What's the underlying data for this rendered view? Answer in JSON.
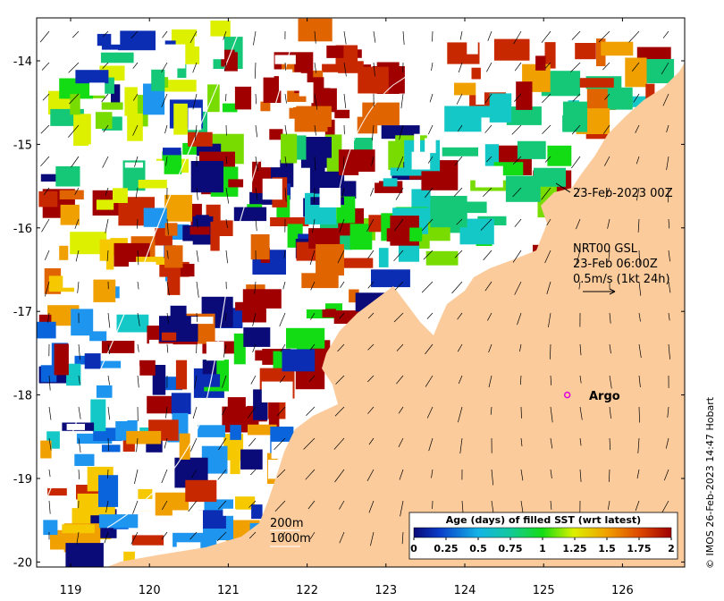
{
  "colors": {
    "land": "#fbcb9c",
    "frame": "#000000",
    "no_data": "#ffffff",
    "argo_marker": "#e000e0",
    "palette": [
      "#0a0a78",
      "#0a2db4",
      "#0a64dc",
      "#1e96f0",
      "#14c8c8",
      "#14c878",
      "#14dc14",
      "#78dc00",
      "#dcf000",
      "#f5c800",
      "#f0a000",
      "#e06400",
      "#c82800",
      "#a00000"
    ]
  },
  "x_axis": {
    "ticks": [
      "119",
      "120",
      "121",
      "122",
      "123",
      "124",
      "125",
      "126"
    ]
  },
  "y_axis": {
    "ticks": [
      "-14",
      "-15",
      "-16",
      "-17",
      "-18",
      "-19",
      "-20"
    ]
  },
  "annotations": {
    "analysis_time": "23-Feb-2023 00Z",
    "current_source": "NRT00 GSL",
    "current_time": "23-Feb 06:00Z",
    "current_scale": "0.5m/s (1kt 24h)"
  },
  "isobaths": {
    "first": "200m",
    "second": "1000m"
  },
  "argo": {
    "label": "Argo",
    "longitude": 125.3,
    "latitude": -18.0
  },
  "colorbar": {
    "title": "Age (days) of filled SST (wrt latest)",
    "ticks": [
      "0",
      "0.25",
      "0.5",
      "0.75",
      "1",
      "1.25",
      "1.5",
      "1.75",
      "2"
    ],
    "range": [
      0,
      2
    ]
  },
  "credit": "© IMOS 26-Feb-2023 14:47 Hobart"
}
